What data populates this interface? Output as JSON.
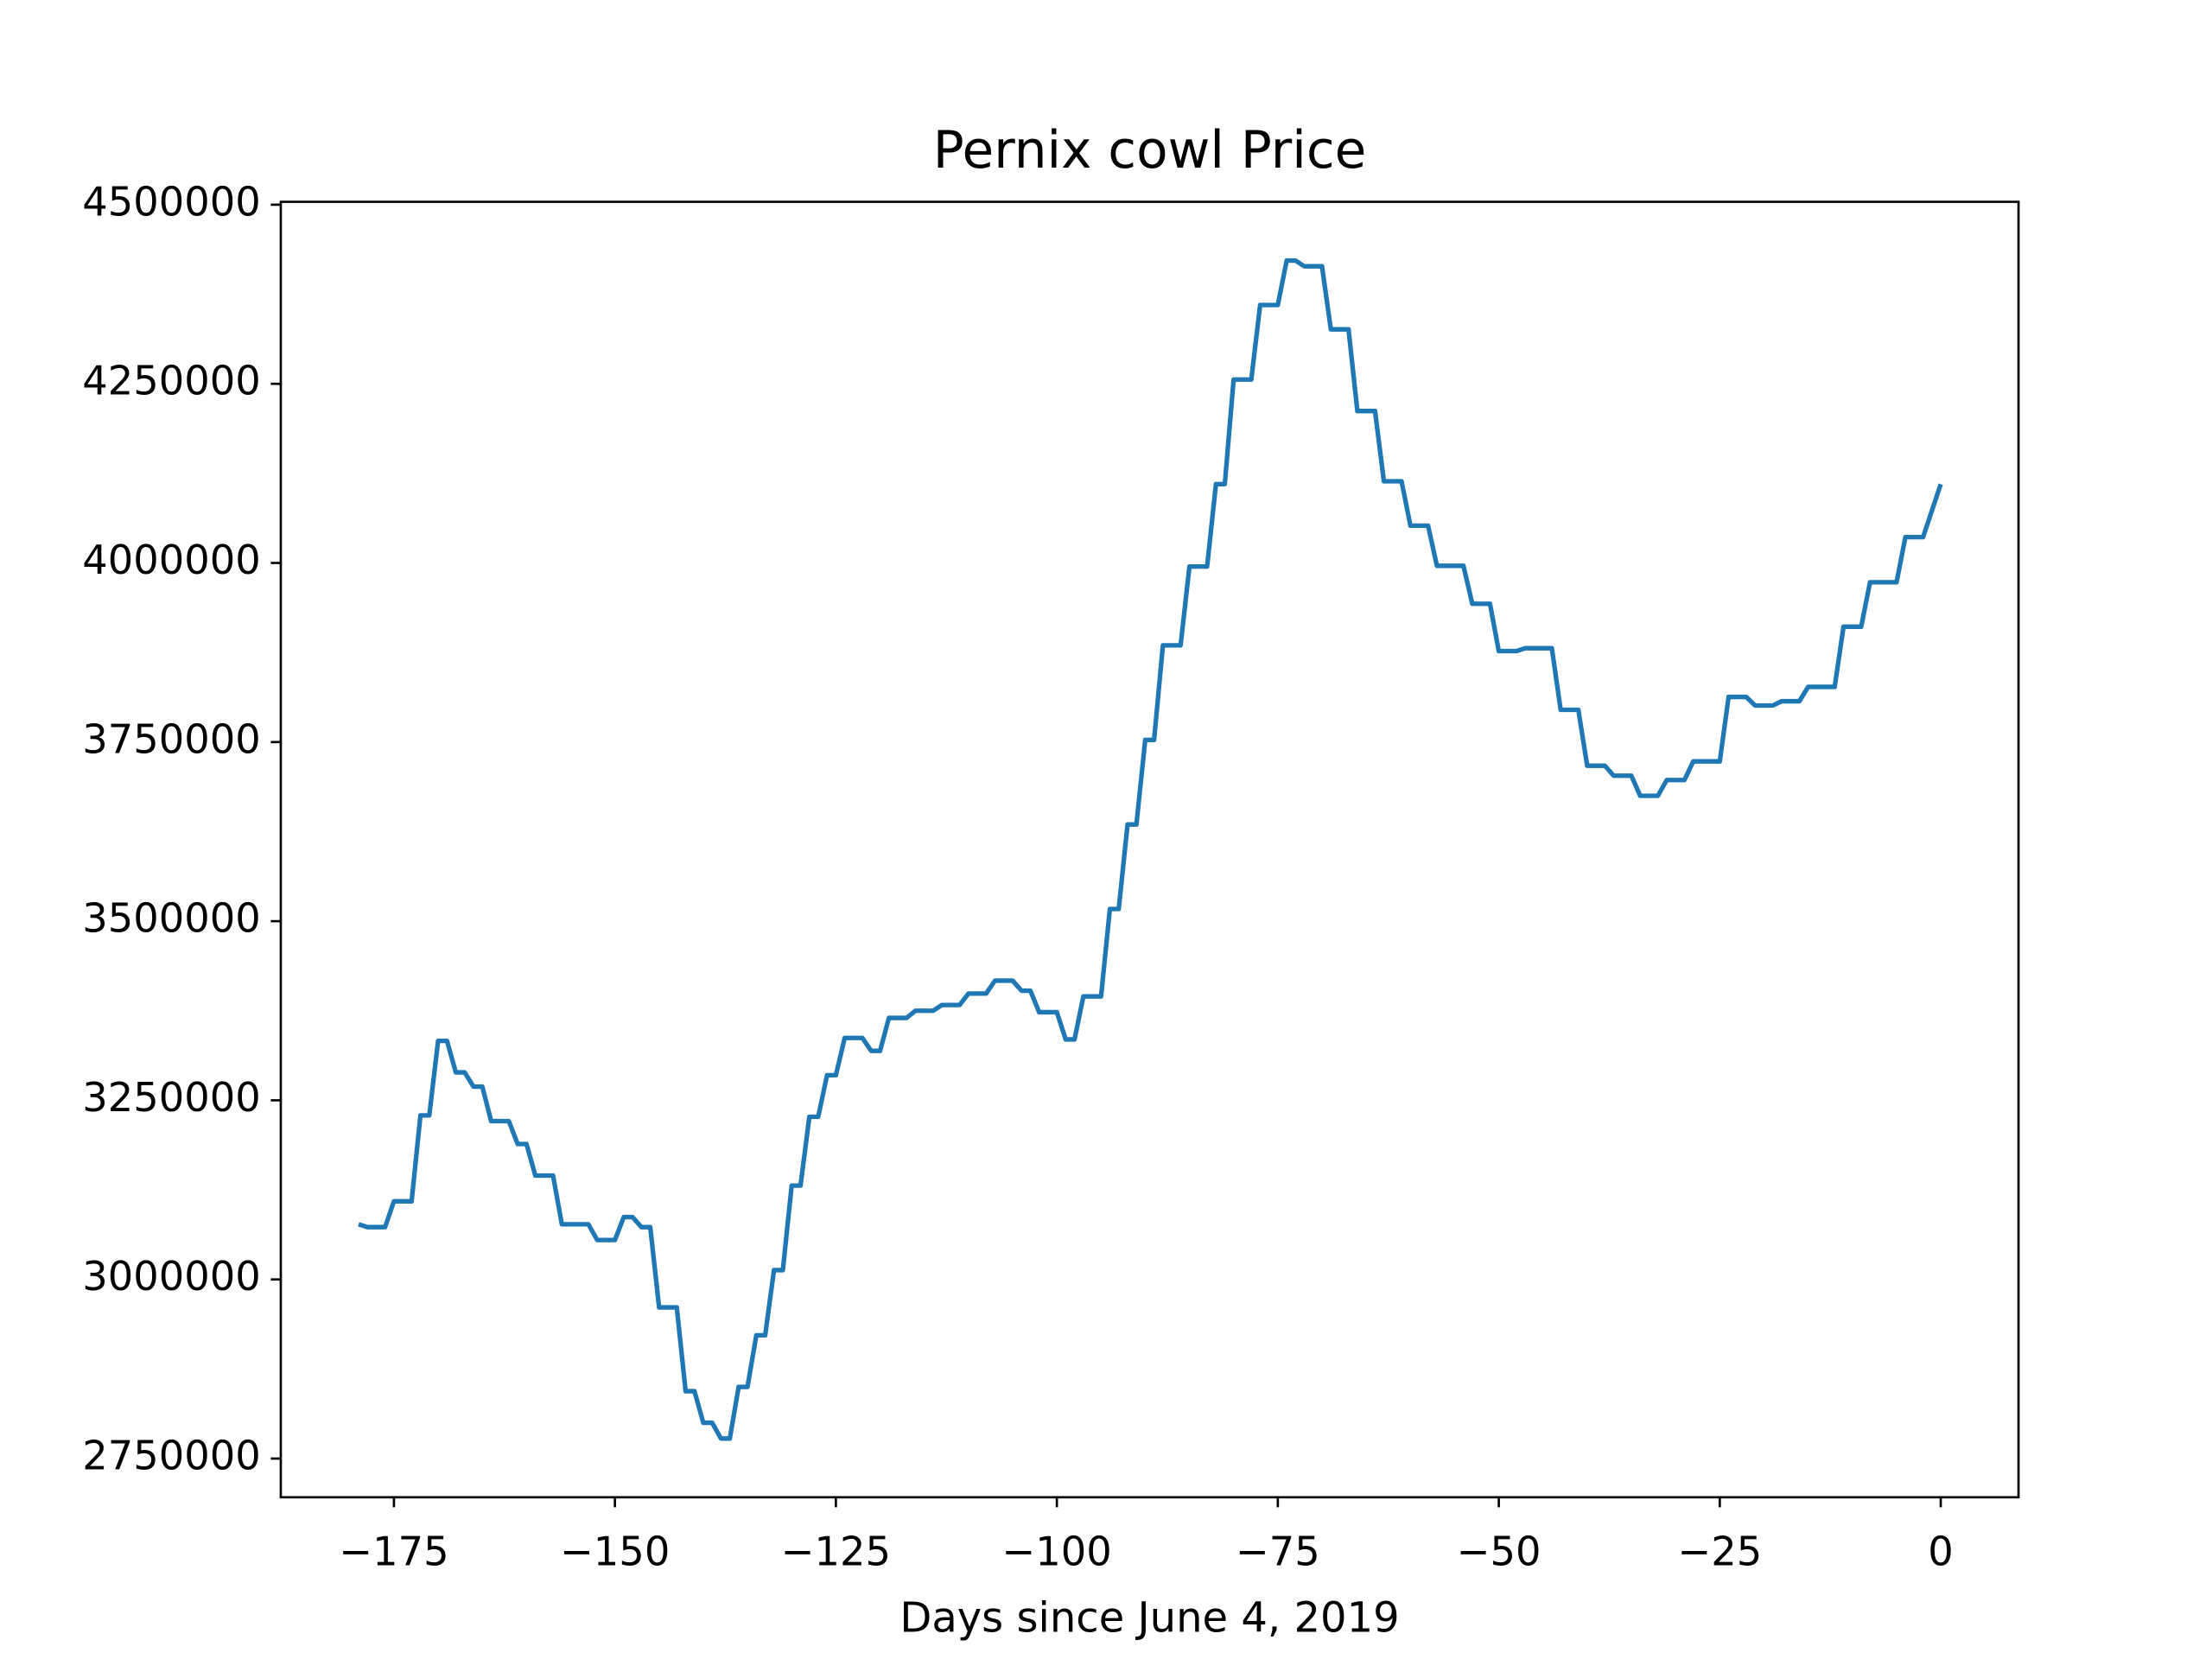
{
  "chart_data": {
    "type": "line",
    "title": "Pernix cowl Price",
    "x_label": "Days since June 4, 2019",
    "xlim": [
      -187.8,
      8.8
    ],
    "ylim": [
      2696000,
      4504000
    ],
    "xticks": [
      {
        "value": -175,
        "label": "−175"
      },
      {
        "value": -150,
        "label": "−150"
      },
      {
        "value": -125,
        "label": "−125"
      },
      {
        "value": -100,
        "label": "−100"
      },
      {
        "value": -75,
        "label": "−75"
      },
      {
        "value": -50,
        "label": "−50"
      },
      {
        "value": -25,
        "label": "−25"
      },
      0
    ],
    "yticks": [
      2750000,
      3000000,
      3250000,
      3500000,
      3750000,
      4000000,
      4250000,
      4500000
    ],
    "grid": false,
    "series": [
      {
        "name": "Price",
        "color": "#1f77b4",
        "x": [
          -179,
          -178,
          -176,
          -175,
          -173,
          -172,
          -171,
          -170,
          -169,
          -168,
          -167,
          -166,
          -165,
          -164,
          -162,
          -161,
          -160,
          -159,
          -157,
          -156,
          -153,
          -152,
          -150,
          -149,
          -148,
          -147,
          -146,
          -145,
          -143,
          -142,
          -141,
          -140,
          -139,
          -138,
          -137,
          -136,
          -135,
          -134,
          -133,
          -132,
          -131,
          -130,
          -129,
          -128,
          -127,
          -126,
          -125,
          -124,
          -122,
          -121,
          -120,
          -119,
          -117,
          -116,
          -114,
          -113,
          -111,
          -110,
          -108,
          -107,
          -105,
          -104,
          -103,
          -102,
          -100,
          -99,
          -98,
          -97,
          -95,
          -94,
          -93,
          -92,
          -91,
          -90,
          -89,
          -88,
          -86,
          -85,
          -83,
          -82,
          -81,
          -80,
          -78,
          -77,
          -75,
          -74,
          -73,
          -72,
          -70,
          -69,
          -67,
          -66,
          -64,
          -63,
          -61,
          -60,
          -58,
          -57,
          -54,
          -53,
          -51,
          -50,
          -48,
          -47,
          -44,
          -43,
          -41,
          -40,
          -38,
          -37,
          -35,
          -34,
          -32,
          -31,
          -29,
          -28,
          -25,
          -24,
          -22,
          -21,
          -19,
          -18,
          -16,
          -15,
          -12,
          -11,
          -9,
          -8,
          -5,
          -4,
          -2,
          0
        ],
        "values": [
          3077000,
          3073000,
          3073000,
          3109000,
          3109000,
          3229000,
          3229000,
          3333000,
          3333000,
          3289000,
          3289000,
          3269000,
          3269000,
          3221000,
          3221000,
          3189000,
          3189000,
          3145000,
          3145000,
          3077000,
          3077000,
          3055000,
          3055000,
          3087000,
          3087000,
          3073000,
          3073000,
          2961000,
          2961000,
          2844000,
          2844000,
          2800000,
          2800000,
          2778000,
          2778000,
          2850000,
          2850000,
          2922000,
          2922000,
          3013000,
          3013000,
          3131000,
          3131000,
          3227000,
          3227000,
          3285000,
          3285000,
          3337000,
          3337000,
          3319000,
          3319000,
          3365000,
          3365000,
          3375000,
          3375000,
          3383000,
          3383000,
          3399000,
          3399000,
          3417000,
          3417000,
          3403000,
          3403000,
          3373000,
          3373000,
          3335000,
          3335000,
          3395000,
          3395000,
          3517000,
          3517000,
          3635000,
          3635000,
          3753000,
          3753000,
          3885000,
          3885000,
          3995000,
          3995000,
          4110000,
          4110000,
          4256000,
          4256000,
          4360000,
          4360000,
          4422000,
          4422000,
          4414000,
          4414000,
          4326000,
          4326000,
          4212000,
          4212000,
          4114000,
          4114000,
          4052000,
          4052000,
          3996000,
          3996000,
          3943000,
          3943000,
          3877000,
          3877000,
          3881000,
          3881000,
          3795000,
          3795000,
          3717000,
          3717000,
          3703000,
          3703000,
          3675000,
          3675000,
          3697000,
          3697000,
          3723000,
          3723000,
          3813000,
          3813000,
          3801000,
          3801000,
          3807000,
          3807000,
          3827000,
          3827000,
          3911000,
          3911000,
          3973000,
          3973000,
          4036000,
          4036000,
          4110000
        ]
      }
    ]
  }
}
